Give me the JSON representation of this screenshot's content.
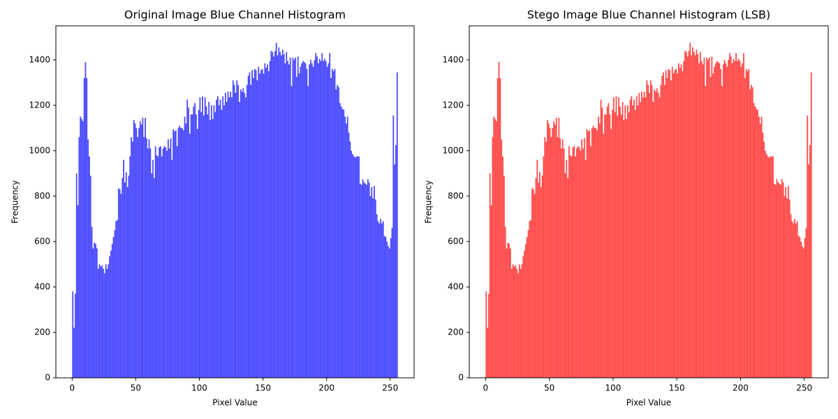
{
  "chart_data": [
    {
      "type": "histogram",
      "title": "Original Image Blue Channel Histogram",
      "xlabel": "Pixel Value",
      "ylabel": "Frequency",
      "color": "#4d4dff",
      "bins": [
        0,
        1,
        2,
        3,
        4,
        5,
        6,
        7,
        8,
        9,
        10,
        11,
        12,
        13,
        14,
        15,
        16,
        17,
        18,
        19,
        20,
        21,
        22,
        23,
        24,
        25,
        26,
        27,
        28,
        29,
        30,
        31,
        32,
        33,
        34,
        35,
        36,
        37,
        38,
        39,
        40,
        41,
        42,
        43,
        44,
        45,
        46,
        47,
        48,
        49,
        50,
        51,
        52,
        53,
        54,
        55,
        56,
        57,
        58,
        59,
        60,
        61,
        62,
        63,
        64,
        65,
        66,
        67,
        68,
        69,
        70,
        71,
        72,
        73,
        74,
        75,
        76,
        77,
        78,
        79,
        80,
        81,
        82,
        83,
        84,
        85,
        86,
        87,
        88,
        89,
        90,
        91,
        92,
        93,
        94,
        95,
        96,
        97,
        98,
        99,
        100,
        101,
        102,
        103,
        104,
        105,
        106,
        107,
        108,
        109,
        110,
        111,
        112,
        113,
        114,
        115,
        116,
        117,
        118,
        119,
        120,
        121,
        122,
        123,
        124,
        125,
        126,
        127,
        128,
        129,
        130,
        131,
        132,
        133,
        134,
        135,
        136,
        137,
        138,
        139,
        140,
        141,
        142,
        143,
        144,
        145,
        146,
        147,
        148,
        149,
        150,
        151,
        152,
        153,
        154,
        155,
        156,
        157,
        158,
        159,
        160,
        161,
        162,
        163,
        164,
        165,
        166,
        167,
        168,
        169,
        170,
        171,
        172,
        173,
        174,
        175,
        176,
        177,
        178,
        179,
        180,
        181,
        182,
        183,
        184,
        185,
        186,
        187,
        188,
        189,
        190,
        191,
        192,
        193,
        194,
        195,
        196,
        197,
        198,
        199,
        200,
        201,
        202,
        203,
        204,
        205,
        206,
        207,
        208,
        209,
        210,
        211,
        212,
        213,
        214,
        215,
        216,
        217,
        218,
        219,
        220,
        221,
        222,
        223,
        224,
        225,
        226,
        227,
        228,
        229,
        230,
        231,
        232,
        233,
        234,
        235,
        236,
        237,
        238,
        239,
        240,
        241,
        242,
        243,
        244,
        245,
        246,
        247,
        248,
        249,
        250,
        251,
        252,
        253,
        254,
        255,
        256
      ],
      "values": [
        380,
        220,
        370,
        900,
        760,
        1060,
        1150,
        1140,
        1130,
        1320,
        1390,
        1320,
        1050,
        975,
        890,
        665,
        570,
        595,
        590,
        570,
        480,
        500,
        490,
        495,
        480,
        460,
        500,
        480,
        500,
        535,
        560,
        590,
        620,
        650,
        690,
        695,
        835,
        830,
        810,
        880,
        960,
        860,
        905,
        840,
        890,
        975,
        1060,
        1040,
        1135,
        1120,
        1100,
        1060,
        1100,
        1130,
        1115,
        1145,
        1060,
        1145,
        1055,
        1010,
        1050,
        1010,
        900,
        960,
        880,
        1020,
        980,
        975,
        1015,
        1020,
        975,
        1010,
        1020,
        1015,
        1000,
        1050,
        1010,
        1055,
        960,
        1095,
        1085,
        1090,
        1020,
        1100,
        1110,
        1100,
        1100,
        1090,
        1150,
        1120,
        1225,
        1190,
        1075,
        1160,
        1160,
        1195,
        1210,
        1160,
        1095,
        1180,
        1235,
        1170,
        1240,
        1155,
        1235,
        1195,
        1160,
        1215,
        1135,
        1200,
        1140,
        1200,
        1170,
        1225,
        1240,
        1200,
        1225,
        1180,
        1240,
        1200,
        1255,
        1215,
        1260,
        1235,
        1260,
        1235,
        1310,
        1290,
        1255,
        1310,
        1290,
        1215,
        1270,
        1260,
        1275,
        1255,
        1235,
        1290,
        1330,
        1345,
        1290,
        1355,
        1320,
        1360,
        1355,
        1310,
        1370,
        1340,
        1355,
        1360,
        1340,
        1385,
        1365,
        1380,
        1350,
        1395,
        1440,
        1435,
        1415,
        1440,
        1475,
        1420,
        1455,
        1435,
        1420,
        1445,
        1425,
        1385,
        1435,
        1395,
        1380,
        1410,
        1285,
        1410,
        1400,
        1410,
        1325,
        1415,
        1340,
        1370,
        1385,
        1395,
        1390,
        1385,
        1360,
        1285,
        1380,
        1400,
        1385,
        1370,
        1400,
        1430,
        1415,
        1385,
        1405,
        1395,
        1430,
        1395,
        1405,
        1395,
        1370,
        1385,
        1430,
        1320,
        1360,
        1350,
        1360,
        1270,
        1290,
        1280,
        1210,
        1195,
        1185,
        1180,
        1150,
        1120,
        1150,
        1080,
        1040,
        1000,
        985,
        975,
        970,
        975,
        975,
        975,
        855,
        850,
        875,
        860,
        855,
        850,
        875,
        860,
        800,
        840,
        790,
        845,
        785,
        720,
        690,
        680,
        700,
        680,
        690,
        625,
        620,
        600,
        580,
        570,
        615,
        660,
        1155,
        940,
        1025,
        1345
      ],
      "xlim": [
        -12.8,
        268.8
      ],
      "ylim": [
        0,
        1550
      ],
      "xticks": [
        0,
        50,
        100,
        150,
        200,
        250
      ],
      "yticks": [
        0,
        200,
        400,
        600,
        800,
        1000,
        1200,
        1400
      ]
    },
    {
      "type": "histogram",
      "title": "Stego Image Blue Channel Histogram (LSB)",
      "xlabel": "Pixel Value",
      "ylabel": "Frequency",
      "color": "#ff4d4d",
      "bins": [
        0,
        1,
        2,
        3,
        4,
        5,
        6,
        7,
        8,
        9,
        10,
        11,
        12,
        13,
        14,
        15,
        16,
        17,
        18,
        19,
        20,
        21,
        22,
        23,
        24,
        25,
        26,
        27,
        28,
        29,
        30,
        31,
        32,
        33,
        34,
        35,
        36,
        37,
        38,
        39,
        40,
        41,
        42,
        43,
        44,
        45,
        46,
        47,
        48,
        49,
        50,
        51,
        52,
        53,
        54,
        55,
        56,
        57,
        58,
        59,
        60,
        61,
        62,
        63,
        64,
        65,
        66,
        67,
        68,
        69,
        70,
        71,
        72,
        73,
        74,
        75,
        76,
        77,
        78,
        79,
        80,
        81,
        82,
        83,
        84,
        85,
        86,
        87,
        88,
        89,
        90,
        91,
        92,
        93,
        94,
        95,
        96,
        97,
        98,
        99,
        100,
        101,
        102,
        103,
        104,
        105,
        106,
        107,
        108,
        109,
        110,
        111,
        112,
        113,
        114,
        115,
        116,
        117,
        118,
        119,
        120,
        121,
        122,
        123,
        124,
        125,
        126,
        127,
        128,
        129,
        130,
        131,
        132,
        133,
        134,
        135,
        136,
        137,
        138,
        139,
        140,
        141,
        142,
        143,
        144,
        145,
        146,
        147,
        148,
        149,
        150,
        151,
        152,
        153,
        154,
        155,
        156,
        157,
        158,
        159,
        160,
        161,
        162,
        163,
        164,
        165,
        166,
        167,
        168,
        169,
        170,
        171,
        172,
        173,
        174,
        175,
        176,
        177,
        178,
        179,
        180,
        181,
        182,
        183,
        184,
        185,
        186,
        187,
        188,
        189,
        190,
        191,
        192,
        193,
        194,
        195,
        196,
        197,
        198,
        199,
        200,
        201,
        202,
        203,
        204,
        205,
        206,
        207,
        208,
        209,
        210,
        211,
        212,
        213,
        214,
        215,
        216,
        217,
        218,
        219,
        220,
        221,
        222,
        223,
        224,
        225,
        226,
        227,
        228,
        229,
        230,
        231,
        232,
        233,
        234,
        235,
        236,
        237,
        238,
        239,
        240,
        241,
        242,
        243,
        244,
        245,
        246,
        247,
        248,
        249,
        250,
        251,
        252,
        253,
        254,
        255,
        256
      ],
      "values": [
        380,
        220,
        370,
        900,
        760,
        1060,
        1150,
        1140,
        1130,
        1320,
        1390,
        1320,
        1050,
        975,
        890,
        665,
        570,
        595,
        590,
        570,
        480,
        500,
        490,
        495,
        480,
        460,
        500,
        480,
        500,
        535,
        560,
        590,
        620,
        650,
        690,
        695,
        835,
        830,
        810,
        880,
        960,
        860,
        905,
        840,
        890,
        975,
        1060,
        1040,
        1135,
        1120,
        1100,
        1060,
        1100,
        1130,
        1115,
        1145,
        1060,
        1145,
        1055,
        1010,
        1050,
        1010,
        900,
        960,
        880,
        1020,
        980,
        975,
        1015,
        1020,
        975,
        1010,
        1020,
        1015,
        1000,
        1050,
        1010,
        1055,
        960,
        1095,
        1085,
        1090,
        1020,
        1100,
        1110,
        1100,
        1100,
        1090,
        1150,
        1120,
        1225,
        1190,
        1075,
        1160,
        1160,
        1195,
        1210,
        1160,
        1095,
        1180,
        1235,
        1170,
        1240,
        1155,
        1235,
        1195,
        1160,
        1215,
        1135,
        1200,
        1140,
        1200,
        1170,
        1225,
        1240,
        1200,
        1225,
        1180,
        1240,
        1200,
        1255,
        1215,
        1260,
        1235,
        1260,
        1235,
        1310,
        1290,
        1255,
        1310,
        1290,
        1215,
        1270,
        1260,
        1275,
        1255,
        1235,
        1290,
        1330,
        1345,
        1290,
        1355,
        1320,
        1360,
        1355,
        1310,
        1370,
        1340,
        1355,
        1360,
        1340,
        1385,
        1365,
        1380,
        1350,
        1395,
        1440,
        1435,
        1415,
        1440,
        1475,
        1420,
        1455,
        1435,
        1420,
        1445,
        1425,
        1385,
        1435,
        1395,
        1380,
        1410,
        1285,
        1410,
        1400,
        1410,
        1325,
        1415,
        1340,
        1370,
        1385,
        1395,
        1390,
        1385,
        1360,
        1285,
        1380,
        1400,
        1385,
        1370,
        1400,
        1430,
        1415,
        1385,
        1405,
        1395,
        1430,
        1395,
        1405,
        1395,
        1370,
        1385,
        1430,
        1320,
        1360,
        1350,
        1360,
        1270,
        1290,
        1280,
        1210,
        1195,
        1185,
        1180,
        1150,
        1120,
        1150,
        1080,
        1040,
        1000,
        985,
        975,
        970,
        975,
        975,
        975,
        855,
        850,
        875,
        860,
        855,
        850,
        875,
        860,
        800,
        840,
        790,
        845,
        785,
        720,
        690,
        680,
        700,
        680,
        690,
        625,
        620,
        600,
        580,
        570,
        615,
        660,
        1155,
        940,
        1025,
        1345
      ],
      "xlim": [
        -12.8,
        268.8
      ],
      "ylim": [
        0,
        1550
      ],
      "xticks": [
        0,
        50,
        100,
        150,
        200,
        250
      ],
      "yticks": [
        0,
        200,
        400,
        600,
        800,
        1000,
        1200,
        1400
      ]
    }
  ]
}
